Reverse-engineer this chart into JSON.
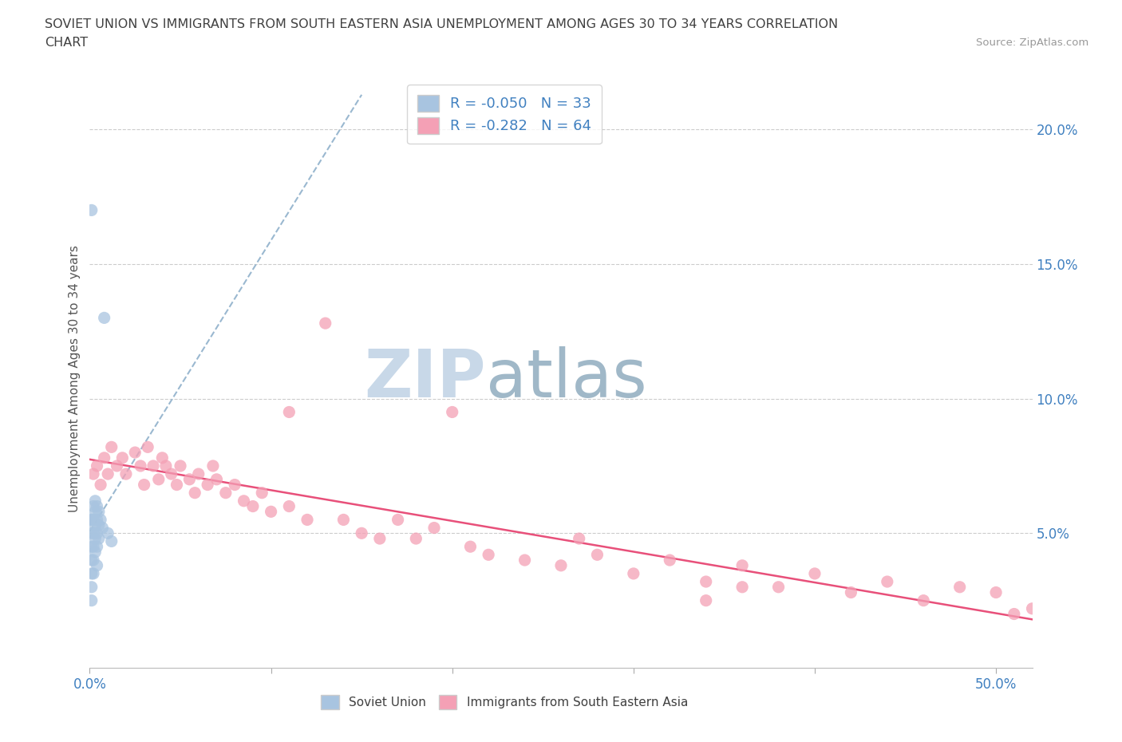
{
  "title_line1": "SOVIET UNION VS IMMIGRANTS FROM SOUTH EASTERN ASIA UNEMPLOYMENT AMONG AGES 30 TO 34 YEARS CORRELATION",
  "title_line2": "CHART",
  "source_text": "Source: ZipAtlas.com",
  "ylabel": "Unemployment Among Ages 30 to 34 years",
  "xlim": [
    0.0,
    0.52
  ],
  "ylim": [
    0.0,
    0.215
  ],
  "xticks": [
    0.0,
    0.1,
    0.2,
    0.3,
    0.4,
    0.5
  ],
  "xtick_labels": [
    "0.0%",
    "",
    "",
    "",
    "",
    "50.0%"
  ],
  "yticks_right": [
    0.05,
    0.1,
    0.15,
    0.2
  ],
  "ytick_labels_right": [
    "5.0%",
    "10.0%",
    "15.0%",
    "20.0%"
  ],
  "blue_color": "#a8c4e0",
  "pink_color": "#f4a0b5",
  "blue_line_color": "#9ab8d0",
  "pink_line_color": "#e8507a",
  "legend_R1": "R = -0.050",
  "legend_N1": "N = 33",
  "legend_R2": "R = -0.282",
  "legend_N2": "N = 64",
  "watermark_zip": "ZIP",
  "watermark_atlas": "atlas",
  "watermark_color_zip": "#c8d8e8",
  "watermark_color_atlas": "#a0b8c8",
  "title_color": "#404040",
  "axis_label_color": "#4080c0",
  "tick_color": "#7090b0",
  "background_color": "#ffffff",
  "blue_points_x": [
    0.001,
    0.001,
    0.001,
    0.001,
    0.001,
    0.001,
    0.001,
    0.002,
    0.002,
    0.002,
    0.002,
    0.002,
    0.002,
    0.003,
    0.003,
    0.003,
    0.003,
    0.003,
    0.004,
    0.004,
    0.004,
    0.004,
    0.004,
    0.005,
    0.005,
    0.005,
    0.006,
    0.007,
    0.008,
    0.01,
    0.012,
    0.001,
    0.001
  ],
  "blue_points_y": [
    0.17,
    0.055,
    0.055,
    0.05,
    0.045,
    0.04,
    0.035,
    0.06,
    0.055,
    0.05,
    0.045,
    0.04,
    0.035,
    0.062,
    0.058,
    0.053,
    0.048,
    0.043,
    0.06,
    0.055,
    0.05,
    0.045,
    0.038,
    0.058,
    0.053,
    0.048,
    0.055,
    0.052,
    0.13,
    0.05,
    0.047,
    0.03,
    0.025
  ],
  "pink_points_x": [
    0.002,
    0.004,
    0.006,
    0.008,
    0.01,
    0.012,
    0.015,
    0.018,
    0.02,
    0.025,
    0.028,
    0.03,
    0.032,
    0.035,
    0.038,
    0.04,
    0.042,
    0.045,
    0.048,
    0.05,
    0.055,
    0.058,
    0.06,
    0.065,
    0.068,
    0.07,
    0.075,
    0.08,
    0.085,
    0.09,
    0.095,
    0.1,
    0.11,
    0.12,
    0.13,
    0.14,
    0.15,
    0.16,
    0.17,
    0.18,
    0.19,
    0.2,
    0.21,
    0.22,
    0.24,
    0.26,
    0.28,
    0.3,
    0.32,
    0.34,
    0.36,
    0.38,
    0.4,
    0.42,
    0.44,
    0.46,
    0.48,
    0.5,
    0.52,
    0.34,
    0.36,
    0.11,
    0.27,
    0.51
  ],
  "pink_points_y": [
    0.072,
    0.075,
    0.068,
    0.078,
    0.072,
    0.082,
    0.075,
    0.078,
    0.072,
    0.08,
    0.075,
    0.068,
    0.082,
    0.075,
    0.07,
    0.078,
    0.075,
    0.072,
    0.068,
    0.075,
    0.07,
    0.065,
    0.072,
    0.068,
    0.075,
    0.07,
    0.065,
    0.068,
    0.062,
    0.06,
    0.065,
    0.058,
    0.06,
    0.055,
    0.128,
    0.055,
    0.05,
    0.048,
    0.055,
    0.048,
    0.052,
    0.095,
    0.045,
    0.042,
    0.04,
    0.038,
    0.042,
    0.035,
    0.04,
    0.032,
    0.038,
    0.03,
    0.035,
    0.028,
    0.032,
    0.025,
    0.03,
    0.028,
    0.022,
    0.025,
    0.03,
    0.095,
    0.048,
    0.02
  ]
}
